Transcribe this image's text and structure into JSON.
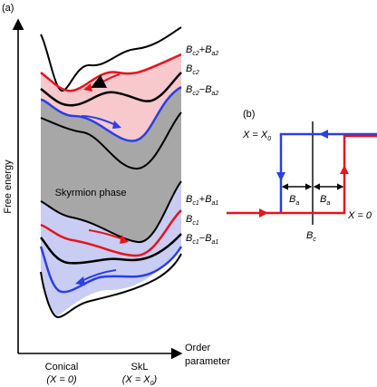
{
  "panel_a": {
    "tag": "(a)",
    "y_axis_label": "Free energy",
    "x_axis_label_line1": "Order",
    "x_axis_label_line2": "parameter",
    "x_tick_conical": "Conical",
    "x_tick_conical_sub": "(X = 0)",
    "x_tick_skl": "SkL",
    "x_tick_skl_sub_pre": "(X = X",
    "x_tick_skl_sub_idx": "0",
    "x_tick_skl_sub_post": ")",
    "region_label": "Skyrmion phase",
    "curve_labels": [
      {
        "base": "B",
        "sub": "c2",
        "op": "+",
        "base2": "B",
        "sub2": "a2"
      },
      {
        "base": "B",
        "sub": "c2",
        "op": "",
        "base2": "",
        "sub2": ""
      },
      {
        "base": "B",
        "sub": "c2",
        "op": "−",
        "base2": "B",
        "sub2": "a2"
      },
      {
        "base": "B",
        "sub": "c1",
        "op": "+",
        "base2": "B",
        "sub2": "a1"
      },
      {
        "base": "B",
        "sub": "c1",
        "op": "",
        "base2": "",
        "sub2": ""
      },
      {
        "base": "B",
        "sub": "c1",
        "op": "−",
        "base2": "B",
        "sub2": "a1"
      }
    ],
    "colors": {
      "red": "#e8141c",
      "blue": "#2a3fe8",
      "black": "#000000",
      "gray": "#a7a7a7",
      "pink": "#f7c9cc",
      "lavender": "#c9cdf3"
    }
  },
  "panel_b": {
    "tag": "(b)",
    "label_x0_pre": "X = X",
    "label_x0_idx": "0",
    "label_x_zero": "X = 0",
    "ba_left": "B",
    "ba_left_sub": "a",
    "ba_right": "B",
    "ba_right_sub": "a",
    "bc": "B",
    "bc_sub": "c"
  }
}
